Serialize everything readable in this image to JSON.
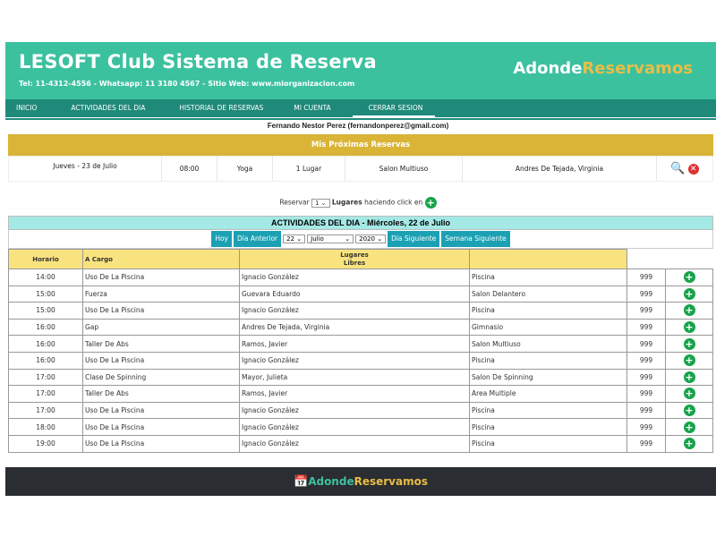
{
  "header": {
    "title": "LESOFT Club Sistema de Reserva",
    "contact": "Tel: 11-4312-4556 - Whatsapp: 11 3180 4567 - Sitio Web: www.miorganizacion.com",
    "brand_a": "Adonde",
    "brand_b": "Reservamos"
  },
  "nav": [
    "INICIO",
    "ACTIVIDADES DEL DIA",
    "HISTORIAL DE RESERVAS",
    "MI CUENTA",
    "CERRAR SESION"
  ],
  "user": "Fernando Nestor Perez (fernandonperez@gmail.com)",
  "upcoming": {
    "title": "Mis Próximas Reservas",
    "rows": [
      {
        "date": "Jueves - 23 de Julio",
        "time": "08:00",
        "activity": "Yoga",
        "places": "1 Lugar",
        "location": "Salon Multiuso",
        "instructor": "Andres De Tejada, Virginia"
      }
    ]
  },
  "reserve": {
    "prefix": "Reservar",
    "qty": "1",
    "bold": "Lugares",
    "suffix": "haciendo click en"
  },
  "activities": {
    "title": "ACTIVIDADES DEL DIA - Miércoles, 22 de Julio",
    "today": "Hoy",
    "prev": "Día Anterior",
    "day": "22",
    "month": "Julio",
    "year": "2020",
    "next": "Día Siguiente",
    "next_week": "Semana Siguiente",
    "headers": [
      "Horario",
      "A Cargo",
      "Lugares\nLibres",
      ""
    ],
    "rows": [
      [
        "14:00",
        "Uso De La Piscina",
        "Ignacio González",
        "Piscina",
        "999"
      ],
      [
        "15:00",
        "Fuerza",
        "Guevara Eduardo",
        "Salon Delantero",
        "999"
      ],
      [
        "15:00",
        "Uso De La Piscina",
        "Ignacio González",
        "Piscina",
        "999"
      ],
      [
        "16:00",
        "Gap",
        "Andres De Tejada, Virginia",
        "Gimnasio",
        "999"
      ],
      [
        "16:00",
        "Taller De Abs",
        "Ramos, Javier",
        "Salon Multiuso",
        "999"
      ],
      [
        "16:00",
        "Uso De La Piscina",
        "Ignacio González",
        "Piscina",
        "999"
      ],
      [
        "17:00",
        "Clase De Spinning",
        "Mayor, Julieta",
        "Salon De Spinning",
        "999"
      ],
      [
        "17:00",
        "Taller De Abs",
        "Ramos, Javier",
        "Area Multiple",
        "999"
      ],
      [
        "17:00",
        "Uso De La Piscina",
        "Ignacio González",
        "Piscina",
        "999"
      ],
      [
        "18:00",
        "Uso De La Piscina",
        "Ignacio González",
        "Piscina",
        "999"
      ],
      [
        "19:00",
        "Uso De La Piscina",
        "Ignacio González",
        "Piscina",
        "999"
      ]
    ]
  },
  "footer": {
    "brand_a": "Adonde",
    "brand_b": "Reservamos"
  }
}
